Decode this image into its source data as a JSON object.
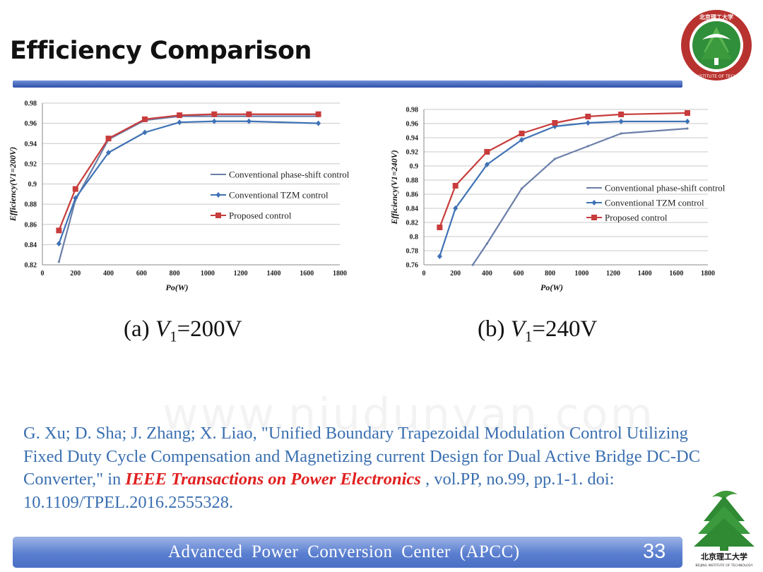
{
  "slide": {
    "title": "Efficiency Comparison",
    "page_number": "33",
    "footer": "Advanced  Power  Conversion  Center (APCC)",
    "watermark": "www.niudunyan.com",
    "logo_bottom_text": "北京理工大学",
    "logo_bottom_subtext": "BEIJING INSTITUTE OF TECHNOLOGY",
    "logo_top_text": "BEIJING INSTITUTE OF TECHNOLOGY",
    "logo_top_chinese": "北京理工大学"
  },
  "captions": {
    "a": {
      "prefix": "(a) ",
      "var": "V",
      "sub": "1",
      "value": "=200V"
    },
    "b": {
      "prefix": "(b) ",
      "var": "V",
      "sub": "1",
      "value": "=240V"
    }
  },
  "citation": {
    "text_before": "G. Xu; D. Sha; J. Zhang; X. Liao, \"Unified Boundary Trapezoidal Modulation Control Utilizing Fixed Duty Cycle Compensation and Magnetizing current Design for Dual Active Bridge DC-DC Converter,\" in ",
    "journal": "IEEE Transactions on Power Electronics",
    "text_after": " , vol.PP, no.99, pp.1-1. doi: 10.1109/TPEL.2016.2555328."
  },
  "colors": {
    "phase_shift": "#6b7fa8",
    "tzm": "#3f72b5",
    "proposed": "#c83c3c",
    "title_bar": "#3a5cb5",
    "citation": "#3a6fb0"
  },
  "chart_data": [
    {
      "type": "line",
      "title": "(a) V1=200V",
      "xlabel": "Po(W)",
      "ylabel": "Efficiency(V1=200V)",
      "xlim": [
        0,
        1800
      ],
      "ylim": [
        0.82,
        0.98
      ],
      "xticks": [
        0,
        200,
        400,
        600,
        800,
        1000,
        1200,
        1400,
        1600,
        1800
      ],
      "yticks": [
        0.82,
        0.84,
        0.86,
        0.88,
        0.9,
        0.92,
        0.94,
        0.96,
        0.98
      ],
      "xtick_labels": [
        "0",
        "200",
        "400",
        "600",
        "800",
        "1000",
        "1200",
        "1400",
        "1600",
        "1800"
      ],
      "ytick_labels": [
        "0.82",
        "0.84",
        "0.86",
        "0.88",
        "0.9",
        "0.92",
        "0.94",
        "0.96",
        "0.98"
      ],
      "grid": true,
      "legend": "right",
      "series": [
        {
          "name": "Conventional phase-shift control",
          "marker": "none",
          "x": [
            100,
            200,
            400,
            620,
            830,
            1040,
            1250,
            1670
          ],
          "y": [
            0.823,
            0.884,
            0.944,
            0.963,
            0.967,
            0.967,
            0.967,
            0.967
          ]
        },
        {
          "name": "Conventional TZM control",
          "marker": "diamond",
          "x": [
            100,
            200,
            400,
            620,
            830,
            1040,
            1250,
            1670
          ],
          "y": [
            0.841,
            0.886,
            0.931,
            0.951,
            0.961,
            0.962,
            0.962,
            0.96
          ]
        },
        {
          "name": "Proposed control",
          "marker": "square",
          "x": [
            100,
            200,
            400,
            620,
            830,
            1040,
            1250,
            1670
          ],
          "y": [
            0.854,
            0.895,
            0.945,
            0.964,
            0.968,
            0.969,
            0.969,
            0.969
          ]
        }
      ]
    },
    {
      "type": "line",
      "title": "(b) V1=240V",
      "xlabel": "Po(W)",
      "ylabel": "Efficiency(V1=240V)",
      "xlim": [
        0,
        1800
      ],
      "ylim": [
        0.76,
        0.98
      ],
      "xticks": [
        0,
        200,
        400,
        600,
        800,
        1000,
        1200,
        1400,
        1600,
        1800
      ],
      "yticks": [
        0.76,
        0.78,
        0.8,
        0.82,
        0.84,
        0.86,
        0.88,
        0.9,
        0.92,
        0.94,
        0.96,
        0.98
      ],
      "xtick_labels": [
        "0",
        "200",
        "400",
        "600",
        "800",
        "1000",
        "1200",
        "1400",
        "1600",
        "1800"
      ],
      "ytick_labels": [
        "0.76",
        "0.78",
        "0.8",
        "0.82",
        "0.84",
        "0.86",
        "0.88",
        "0.9",
        "0.92",
        "0.94",
        "0.96",
        "0.98"
      ],
      "grid": true,
      "legend": "right",
      "series": [
        {
          "name": "Conventional phase-shift control",
          "marker": "none",
          "x": [
            310,
            400,
            620,
            830,
            1040,
            1250,
            1670
          ],
          "y": [
            0.76,
            0.79,
            0.868,
            0.91,
            0.928,
            0.946,
            0.953
          ]
        },
        {
          "name": "Conventional TZM control",
          "marker": "diamond",
          "x": [
            100,
            200,
            400,
            620,
            830,
            1040,
            1250,
            1670
          ],
          "y": [
            0.772,
            0.84,
            0.902,
            0.937,
            0.956,
            0.961,
            0.963,
            0.963
          ]
        },
        {
          "name": "Proposed control",
          "marker": "square",
          "x": [
            100,
            200,
            400,
            620,
            830,
            1040,
            1250,
            1670
          ],
          "y": [
            0.813,
            0.872,
            0.92,
            0.946,
            0.961,
            0.97,
            0.973,
            0.975
          ]
        }
      ]
    }
  ]
}
